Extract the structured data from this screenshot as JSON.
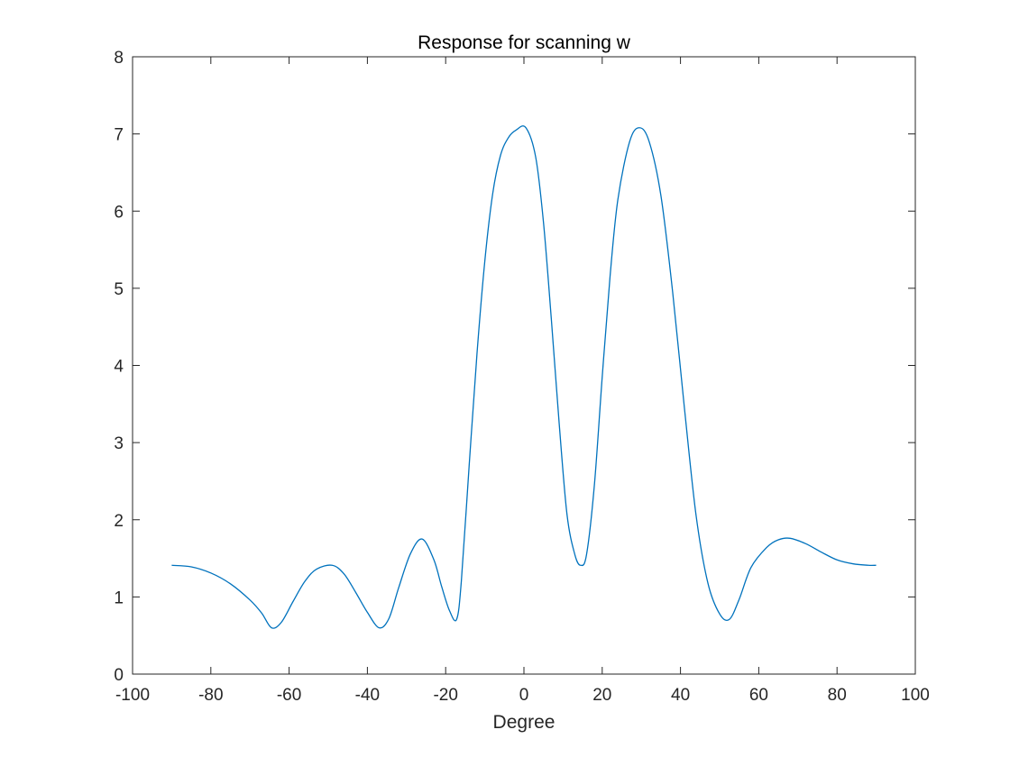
{
  "chart_data": {
    "type": "line",
    "title": "Response for scanning w",
    "xlabel": "Degree",
    "ylabel": "",
    "xlim": [
      -100,
      100
    ],
    "ylim": [
      0,
      8
    ],
    "xticks": [
      -100,
      -80,
      -60,
      -40,
      -20,
      0,
      20,
      40,
      60,
      80,
      100
    ],
    "yticks": [
      0,
      1,
      2,
      3,
      4,
      5,
      6,
      7,
      8
    ],
    "grid": false,
    "line_color": "#0072BD",
    "series": [
      {
        "x": [
          -90,
          -85,
          -80,
          -75,
          -70,
          -67,
          -64.5,
          -62,
          -59,
          -56,
          -53,
          -49,
          -46,
          -43,
          -40,
          -37,
          -34.5,
          -32,
          -29,
          -26,
          -23,
          -21,
          -19,
          -17.2,
          -16,
          -14,
          -12,
          -10,
          -8,
          -6,
          -4,
          -2,
          0.5,
          3,
          5,
          7,
          9,
          11,
          13,
          14.5,
          16,
          18,
          20,
          22,
          24,
          27,
          29.5,
          32,
          35,
          38,
          41,
          44,
          47,
          50,
          52.5,
          55,
          58,
          62,
          65,
          68,
          72,
          76,
          80,
          84,
          88,
          90
        ],
        "y": [
          1.41,
          1.39,
          1.31,
          1.17,
          0.96,
          0.79,
          0.6,
          0.67,
          0.94,
          1.2,
          1.36,
          1.41,
          1.3,
          1.06,
          0.8,
          0.6,
          0.72,
          1.12,
          1.56,
          1.75,
          1.48,
          1.13,
          0.82,
          0.71,
          1.2,
          2.7,
          4.15,
          5.35,
          6.22,
          6.72,
          6.95,
          7.05,
          7.08,
          6.7,
          5.85,
          4.6,
          3.25,
          2.07,
          1.55,
          1.41,
          1.55,
          2.45,
          3.85,
          5.15,
          6.15,
          6.9,
          7.08,
          6.9,
          6.2,
          4.95,
          3.45,
          2.05,
          1.18,
          0.78,
          0.71,
          0.97,
          1.38,
          1.64,
          1.74,
          1.76,
          1.69,
          1.58,
          1.48,
          1.43,
          1.41,
          1.41
        ]
      }
    ]
  }
}
